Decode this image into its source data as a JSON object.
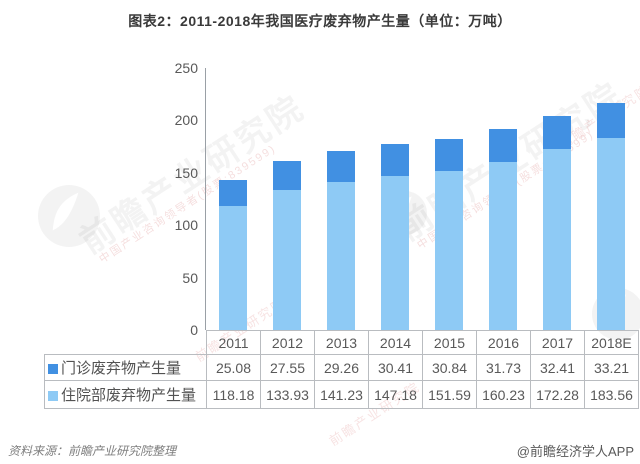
{
  "title": "图表2：2011-2018年我国医疗废弃物产生量（单位：万吨）",
  "chart_data": {
    "type": "bar",
    "stacked": true,
    "title": "图表2：2011-2018年我国医疗废弃物产生量（单位：万吨）",
    "unit": "万吨",
    "categories": [
      "2011",
      "2012",
      "2013",
      "2014",
      "2015",
      "2016",
      "2017",
      "2018E"
    ],
    "series": [
      {
        "name": "门诊废弃物产生量",
        "color": "#4190e2",
        "values": [
          25.08,
          27.55,
          29.26,
          30.41,
          30.84,
          31.73,
          32.41,
          33.21
        ]
      },
      {
        "name": "住院部废弃物产生量",
        "color": "#8ecaf5",
        "values": [
          118.18,
          133.93,
          141.23,
          147.18,
          151.59,
          160.23,
          172.28,
          183.56
        ]
      }
    ],
    "xlabel": "",
    "ylabel": "",
    "ylim": [
      0,
      250
    ],
    "yticks": [
      0,
      50,
      100,
      150,
      200,
      250
    ],
    "grid": false,
    "legend_position": "data-table-left"
  },
  "watermark": {
    "brand_text": "前瞻产业研究院",
    "sub_text": "中国产业咨询领导者(股票:839599)"
  },
  "footer": {
    "source": "资料来源：前瞻产业研究院整理",
    "credit": "@前瞻经济学人APP"
  }
}
